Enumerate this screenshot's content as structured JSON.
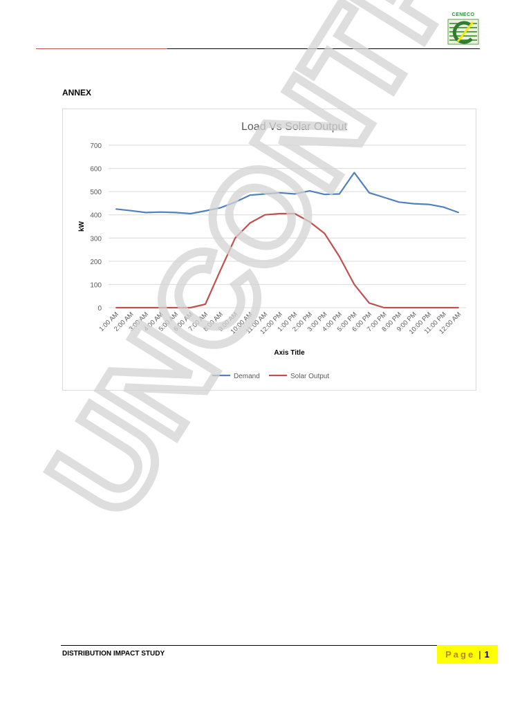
{
  "header": {
    "logo_text": "CENECO"
  },
  "annex_heading": "ANNEX",
  "chart_data": {
    "type": "line",
    "title": "Load Vs Solar Output",
    "xlabel": "Axis Title",
    "ylabel": "kW",
    "ylim": [
      0,
      700
    ],
    "yticks": [
      0,
      100,
      200,
      300,
      400,
      500,
      600,
      700
    ],
    "grid": true,
    "legend_position": "bottom",
    "categories": [
      "1:00 AM",
      "2:00 AM",
      "3:00 AM",
      "4:00 AM",
      "5:00 AM",
      "6:00 AM",
      "7:00 AM",
      "8:00 AM",
      "9:00 AM",
      "10:00 AM",
      "11:00 AM",
      "12:00 PM",
      "1:00 PM",
      "2:00 PM",
      "3:00 PM",
      "4:00 PM",
      "5:00 PM",
      "6:00 PM",
      "7:00 PM",
      "8:00 PM",
      "9:00 PM",
      "10:00 PM",
      "11:00 PM",
      "12:00 AM"
    ],
    "series": [
      {
        "name": "Demand",
        "color": "#4f81bd",
        "values": [
          425,
          418,
          410,
          412,
          410,
          405,
          417,
          430,
          455,
          485,
          490,
          495,
          490,
          503,
          488,
          490,
          582,
          495,
          475,
          455,
          448,
          445,
          433,
          410
        ]
      },
      {
        "name": "Solar Output",
        "color": "#c0504d",
        "values": [
          0,
          0,
          0,
          0,
          0,
          0,
          15,
          160,
          300,
          365,
          400,
          405,
          405,
          370,
          320,
          220,
          100,
          20,
          0,
          0,
          0,
          0,
          0,
          0
        ]
      }
    ]
  },
  "watermark": "UNCONTROLLED",
  "footer": {
    "title": "DISTRIBUTION IMPACT STUDY",
    "page_word": "Page",
    "page_sep": "|",
    "page_number": "1"
  }
}
